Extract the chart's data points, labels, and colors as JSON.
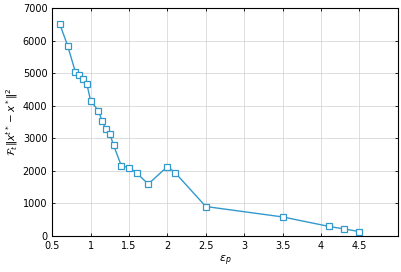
{
  "x": [
    0.6,
    0.7,
    0.8,
    0.85,
    0.9,
    0.95,
    1.0,
    1.1,
    1.15,
    1.2,
    1.25,
    1.3,
    1.4,
    1.5,
    1.6,
    1.75,
    2.0,
    2.1,
    2.5,
    3.5,
    4.1,
    4.3,
    4.5
  ],
  "y": [
    6500,
    5850,
    5050,
    4950,
    4820,
    4680,
    4150,
    3850,
    3530,
    3270,
    3130,
    2780,
    2150,
    2100,
    1930,
    1590,
    2130,
    1940,
    900,
    580,
    290,
    210,
    130
  ],
  "xlim": [
    0.5,
    5.0
  ],
  "ylim": [
    0,
    7000
  ],
  "xticks": [
    0.5,
    1.0,
    1.5,
    2.0,
    2.5,
    3.0,
    3.5,
    4.0,
    4.5
  ],
  "xticklabels": [
    "0.5",
    "1",
    "1.5",
    "2",
    "2.5",
    "3",
    "3.5",
    "4",
    "4.5"
  ],
  "yticks": [
    0,
    1000,
    2000,
    3000,
    4000,
    5000,
    6000,
    7000
  ],
  "yticklabels": [
    "0",
    "1000",
    "2000",
    "3000",
    "4000",
    "5000",
    "6000",
    "7000"
  ],
  "xlabel": "$\\varepsilon_p$",
  "ylabel": "$\\mathcal{F}_t \\Vert x^{t*} - x^* \\Vert^2$",
  "line_color": "#3399cc",
  "marker": "s",
  "marker_facecolor": "white",
  "marker_edgecolor": "#3399cc",
  "grid_color": "#d0d0d0",
  "background_color": "#ffffff",
  "figsize": [
    4.02,
    2.72
  ],
  "dpi": 100
}
